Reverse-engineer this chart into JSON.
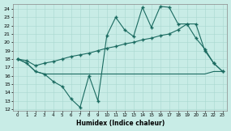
{
  "xlabel": "Humidex (Indice chaleur)",
  "bg_color": "#c8ece6",
  "grid_color": "#a8d8d0",
  "line_color": "#1a6a60",
  "x": [
    0,
    1,
    2,
    3,
    4,
    5,
    6,
    7,
    8,
    9,
    10,
    11,
    12,
    13,
    14,
    15,
    16,
    17,
    18,
    19,
    20,
    21,
    22,
    23
  ],
  "line_spiky": [
    18.0,
    17.5,
    16.5,
    16.2,
    15.3,
    14.7,
    13.2,
    12.2,
    16.0,
    13.0,
    20.8,
    23.0,
    21.5,
    20.7,
    24.2,
    21.8,
    24.3,
    24.2,
    22.2,
    22.2,
    20.5,
    19.2,
    17.5,
    16.5
  ],
  "line_diag": [
    18.0,
    17.8,
    17.2,
    17.5,
    17.7,
    18.0,
    18.3,
    18.5,
    18.7,
    19.0,
    19.3,
    19.5,
    19.8,
    20.0,
    20.3,
    20.5,
    20.8,
    21.0,
    21.5,
    22.2,
    22.2,
    19.0,
    17.5,
    16.5
  ],
  "line_flat": [
    18.0,
    17.5,
    16.5,
    16.2,
    16.2,
    16.2,
    16.2,
    16.2,
    16.2,
    16.2,
    16.2,
    16.2,
    16.2,
    16.2,
    16.2,
    16.2,
    16.2,
    16.2,
    16.2,
    16.2,
    16.2,
    16.2,
    16.5,
    16.5
  ],
  "xlim": [
    -0.5,
    23.5
  ],
  "ylim": [
    11.8,
    24.6
  ],
  "yticks": [
    12,
    13,
    14,
    15,
    16,
    17,
    18,
    19,
    20,
    21,
    22,
    23,
    24
  ],
  "xticks": [
    0,
    1,
    2,
    3,
    4,
    5,
    6,
    7,
    8,
    9,
    10,
    11,
    12,
    13,
    14,
    15,
    16,
    17,
    18,
    19,
    20,
    21,
    22,
    23
  ]
}
